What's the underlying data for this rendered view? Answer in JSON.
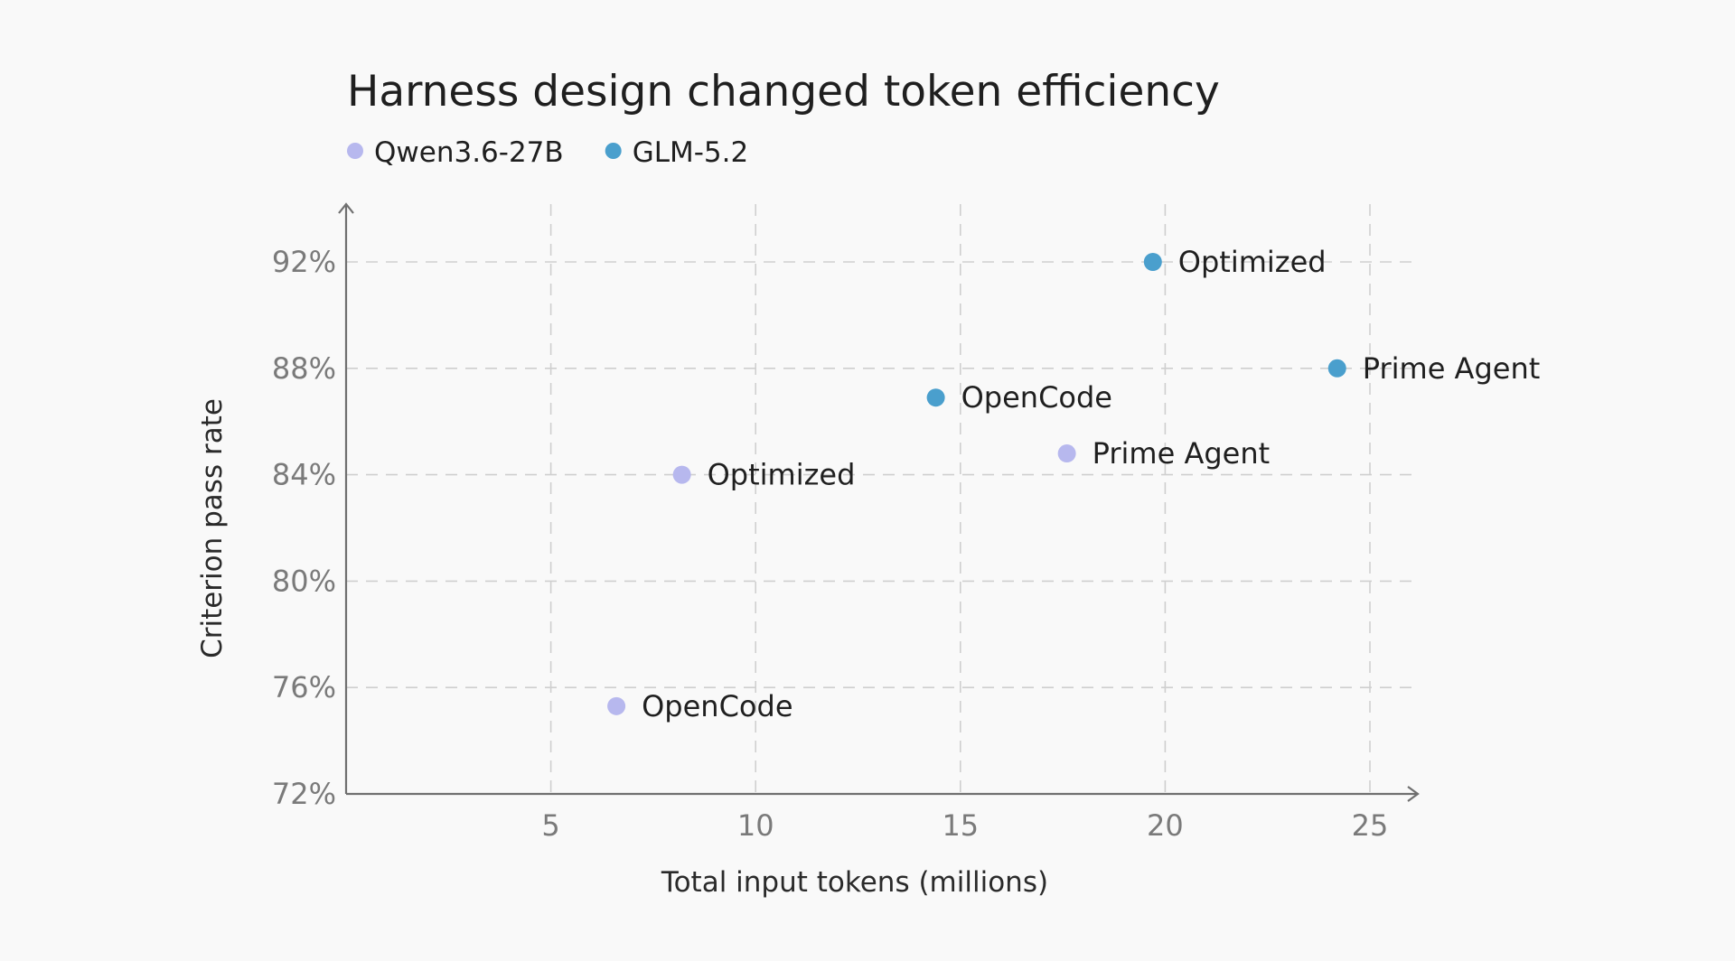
{
  "chart_data": {
    "type": "scatter",
    "title": "Harness design changed token efficiency",
    "xlabel": "Total input tokens (millions)",
    "ylabel": "Criterion pass rate",
    "xlim": [
      0,
      26
    ],
    "ylim": [
      72,
      94
    ],
    "x_ticks": [
      {
        "value": 5,
        "label": "5"
      },
      {
        "value": 10,
        "label": "10"
      },
      {
        "value": 15,
        "label": "15"
      },
      {
        "value": 20,
        "label": "20"
      },
      {
        "value": 25,
        "label": "25"
      }
    ],
    "y_ticks": [
      {
        "value": 72,
        "label": "72%"
      },
      {
        "value": 76,
        "label": "76%"
      },
      {
        "value": 80,
        "label": "80%"
      },
      {
        "value": 84,
        "label": "84%"
      },
      {
        "value": 88,
        "label": "88%"
      },
      {
        "value": 92,
        "label": "92%"
      }
    ],
    "grid": true,
    "legend_position": "top-left",
    "series": [
      {
        "name": "Qwen3.6-27B",
        "color": "#b7b8ee",
        "points": [
          {
            "x": 6.6,
            "y": 75.3,
            "label": "OpenCode"
          },
          {
            "x": 8.2,
            "y": 84.0,
            "label": "Optimized"
          },
          {
            "x": 17.6,
            "y": 84.8,
            "label": "Prime Agent"
          }
        ]
      },
      {
        "name": "GLM-5.2",
        "color": "#4a9fcd",
        "points": [
          {
            "x": 14.4,
            "y": 86.9,
            "label": "OpenCode"
          },
          {
            "x": 19.7,
            "y": 92.0,
            "label": "Optimized"
          },
          {
            "x": 24.2,
            "y": 88.0,
            "label": "Prime Agent"
          }
        ]
      }
    ]
  }
}
